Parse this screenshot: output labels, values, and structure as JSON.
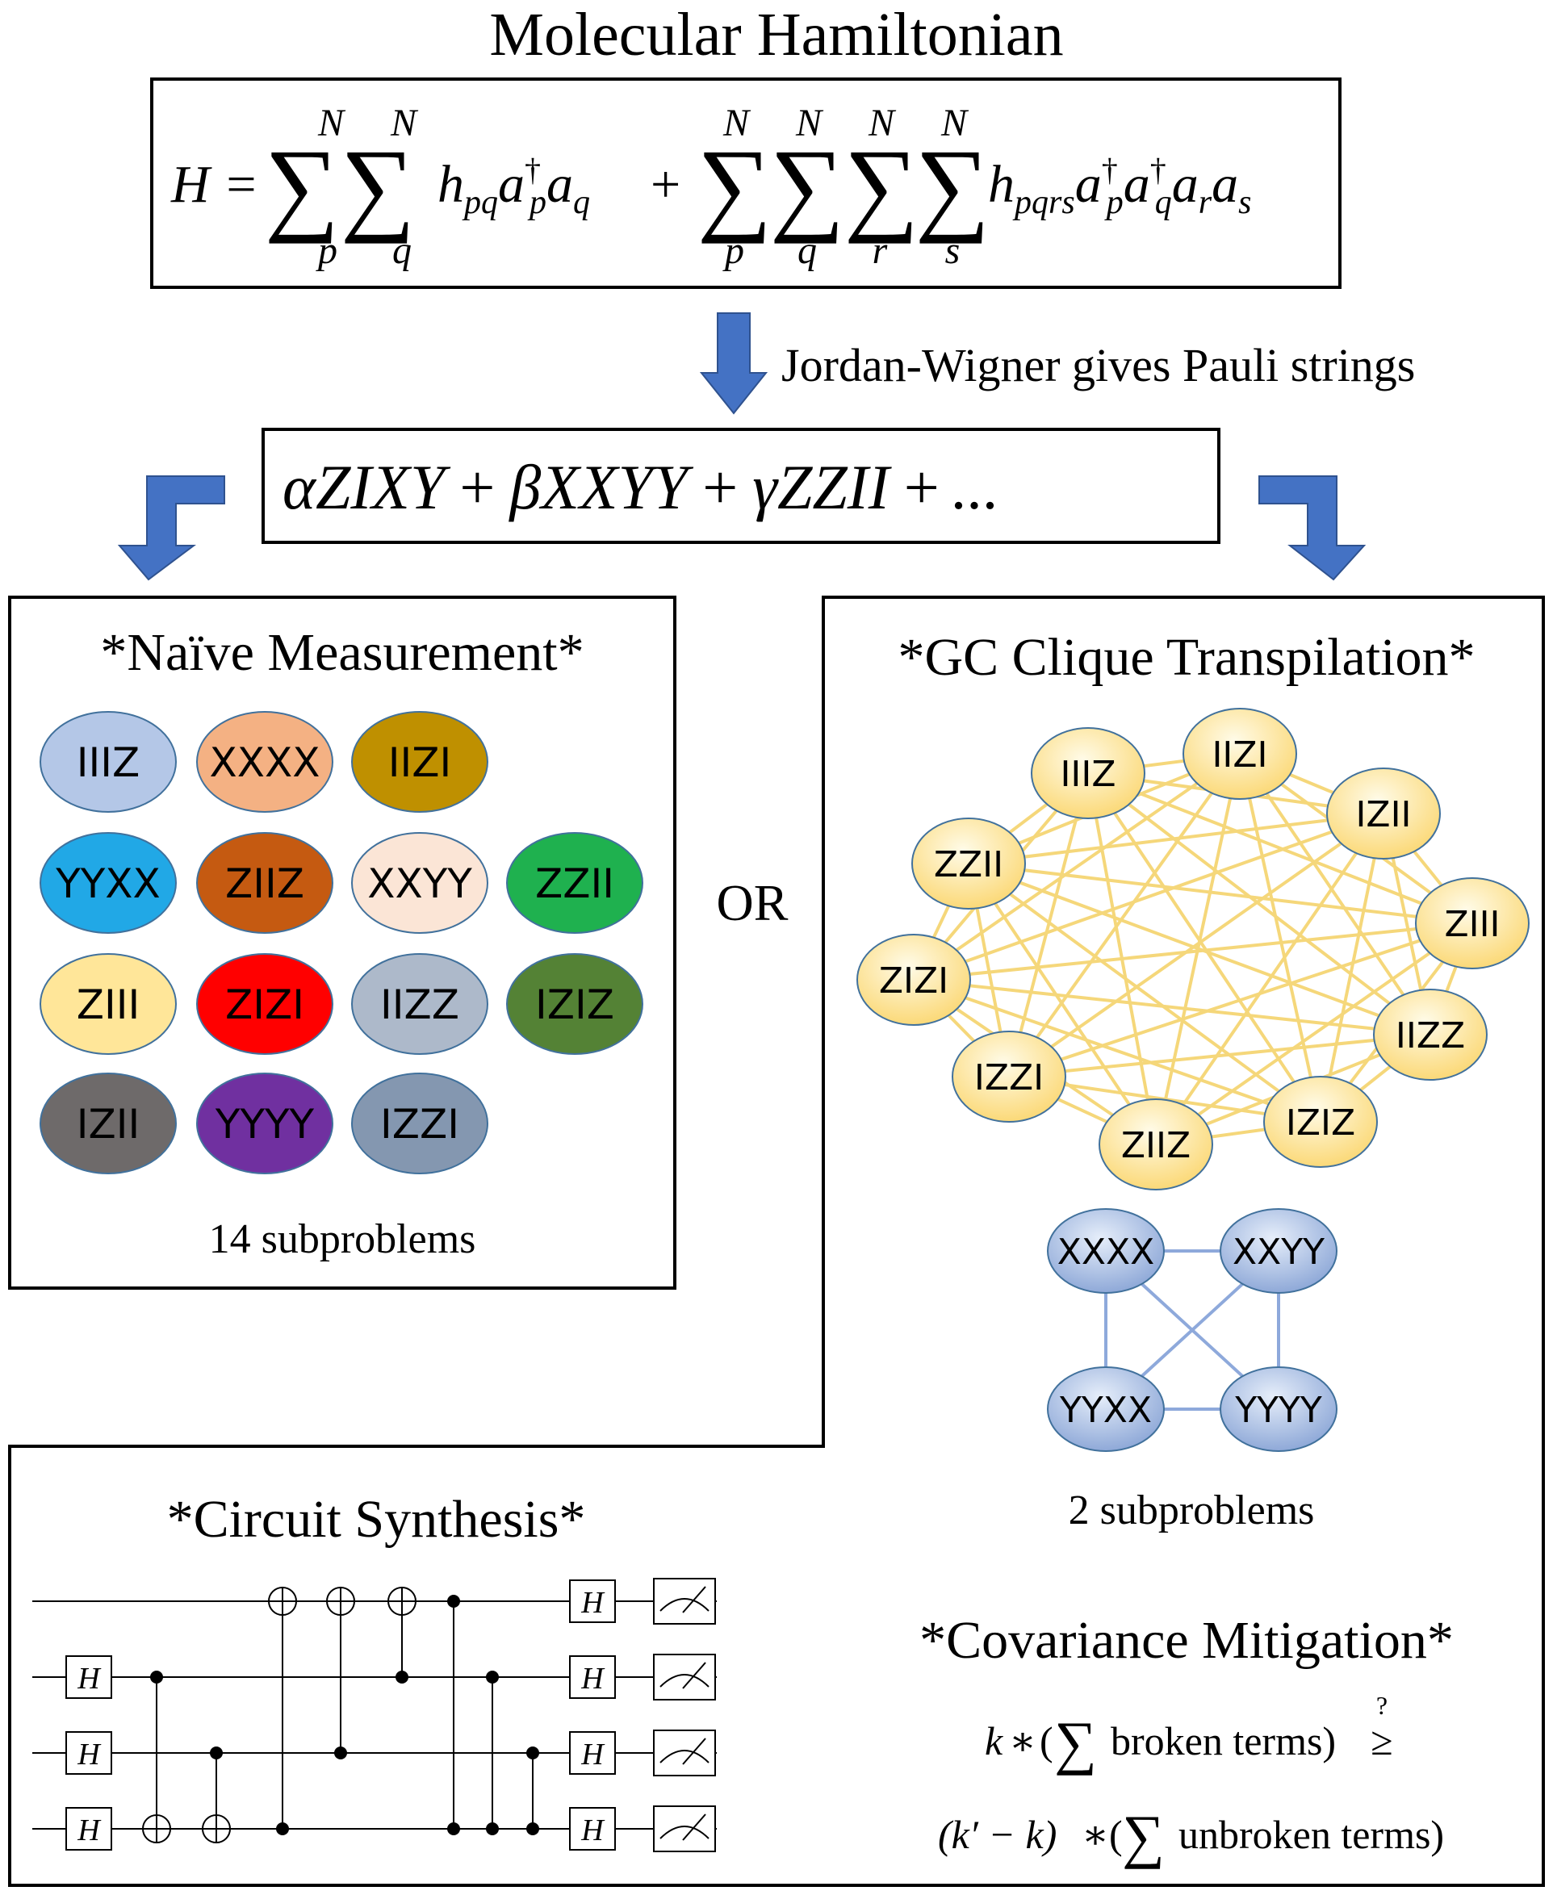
{
  "title": "Molecular Hamiltonian",
  "hamiltonian_formula": {
    "lhs": "H =",
    "sum_upper": "N",
    "indices": [
      "p",
      "q",
      "r",
      "s"
    ],
    "term1": "h",
    "term1_sub": "pq",
    "term1_ops": "a",
    "dagger": "†",
    "plus": "+",
    "term2": "h",
    "term2_sub": "pqrs"
  },
  "jw_label": "Jordan-Wigner gives Pauli strings",
  "pauli_sum": {
    "alpha": "α",
    "beta": "β",
    "gamma": "γ",
    "s1": "ZIXY",
    "s2": "XXYY",
    "s3": "ZZII",
    "plus": "+",
    "ellipsis": "..."
  },
  "naive": {
    "title": "*Naïve Measurement*",
    "ellipses": [
      {
        "label": "IIIZ",
        "color": "#b4c7e7"
      },
      {
        "label": "XXXX",
        "color": "#f4b183"
      },
      {
        "label": "IIZI",
        "color": "#bf9000"
      },
      {
        "label": "YYXX",
        "color": "#21a8e6"
      },
      {
        "label": "ZIIZ",
        "color": "#c55a11"
      },
      {
        "label": "XXYY",
        "color": "#fbe5d6"
      },
      {
        "label": "ZZII",
        "color": "#1fb14f"
      },
      {
        "label": "ZIII",
        "color": "#ffe699"
      },
      {
        "label": "ZIZI",
        "color": "#ff0000"
      },
      {
        "label": "IIZZ",
        "color": "#adb9ca"
      },
      {
        "label": "IZIZ",
        "color": "#548235"
      },
      {
        "label": "IZII",
        "color": "#6e6a6a"
      },
      {
        "label": "YYYY",
        "color": "#7030a0"
      },
      {
        "label": "IZZI",
        "color": "#8497b0"
      }
    ],
    "caption": "14 subproblems"
  },
  "or_label": "OR",
  "gc": {
    "title": "*GC Clique Transpilation*",
    "yellow_nodes": [
      "IIIZ",
      "IIZI",
      "IZII",
      "ZIII",
      "IIZZ",
      "IZIZ",
      "ZIIZ",
      "IZZI",
      "ZIZI",
      "ZZII"
    ],
    "blue_nodes": [
      "XXXX",
      "XXYY",
      "YYXX",
      "YYYY"
    ],
    "caption": "2 subproblems",
    "node_fill_yellow": "#ffe699",
    "node_fill_blue": "#b4c7e7",
    "edge_yellow": "#f5d77a",
    "edge_blue": "#8ea9db"
  },
  "circuit": {
    "title": "*Circuit Synthesis*",
    "gate_label": "H"
  },
  "covariance": {
    "title": "*Covariance Mitigation*",
    "line1_k": "k",
    "star": "∗",
    "line1_open": "(",
    "line1_text": "broken terms)",
    "sum_symbol": "∑",
    "geq": "≥",
    "question": "?",
    "line2_open": "(k′ − k)",
    "line2_text": "unbroken terms)"
  },
  "arrow_color": "#4472c4"
}
